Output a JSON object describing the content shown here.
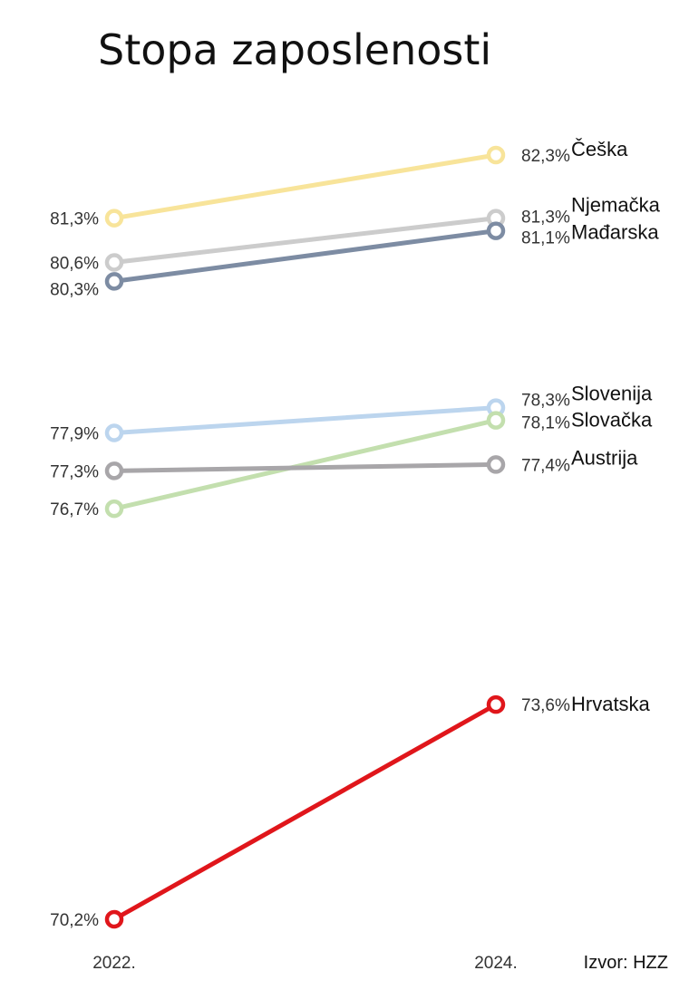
{
  "chart_data": {
    "type": "line",
    "title": "Stopa zaposlenosti",
    "categories": [
      "2022.",
      "2024."
    ],
    "series": [
      {
        "name": "Češka",
        "values": [
          81.3,
          82.3
        ],
        "labels": [
          "81,3%",
          "82,3%"
        ],
        "color": "#f8e49a"
      },
      {
        "name": "Njemačka",
        "values": [
          80.6,
          81.3
        ],
        "labels": [
          "80,6%",
          "81,3%"
        ],
        "color": "#cccccc"
      },
      {
        "name": "Mađarska",
        "values": [
          80.3,
          81.1
        ],
        "labels": [
          "80,3%",
          "81,1%"
        ],
        "color": "#7d8ca3"
      },
      {
        "name": "Slovenija",
        "values": [
          77.9,
          78.3
        ],
        "labels": [
          "77,9%",
          "78,3%"
        ],
        "color": "#bcd5ee"
      },
      {
        "name": "Slovačka",
        "values": [
          76.7,
          78.1
        ],
        "labels": [
          "76,7%",
          "78,1%"
        ],
        "color": "#c3dfae"
      },
      {
        "name": "Austrija",
        "values": [
          77.3,
          77.4
        ],
        "labels": [
          "77,3%",
          "77,4%"
        ],
        "color": "#a8a6a9"
      },
      {
        "name": "Hrvatska",
        "values": [
          70.2,
          73.6
        ],
        "labels": [
          "70,2%",
          "73,6%"
        ],
        "color": "#e0161b"
      }
    ],
    "source": "Izvor: HZZ",
    "grid": false,
    "legend": "none"
  }
}
